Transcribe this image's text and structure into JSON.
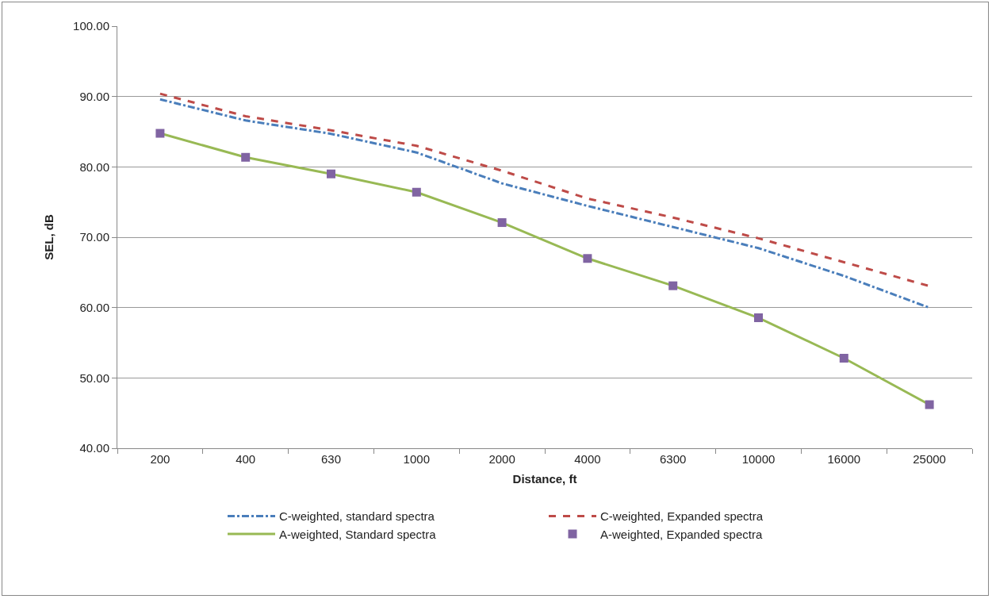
{
  "chart_data": {
    "type": "line",
    "xlabel": "Distance, ft",
    "ylabel": "SEL, dB",
    "categories": [
      "200",
      "400",
      "630",
      "1000",
      "2000",
      "4000",
      "6300",
      "10000",
      "16000",
      "25000"
    ],
    "ylim": [
      40,
      100
    ],
    "yticks": [
      {
        "value": 40,
        "label": "40.00"
      },
      {
        "value": 50,
        "label": "50.00"
      },
      {
        "value": 60,
        "label": "60.00"
      },
      {
        "value": 70,
        "label": "70.00"
      },
      {
        "value": 80,
        "label": "80.00"
      },
      {
        "value": 90,
        "label": "90.00"
      },
      {
        "value": 100,
        "label": "100.00"
      }
    ],
    "grid": "y",
    "legend": "bottom",
    "series": [
      {
        "name": "C-weighted, standard spectra",
        "color": "#4a7ebb",
        "line_style": "dashdot",
        "marker": "none",
        "values": [
          89.6,
          86.6,
          84.7,
          82.05,
          77.65,
          74.45,
          71.45,
          68.45,
          64.5,
          59.97
        ]
      },
      {
        "name": "C-weighted, Expanded spectra",
        "color": "#be4b48",
        "line_style": "dashed",
        "marker": "none",
        "values": [
          90.4,
          87.2,
          85.2,
          83.0,
          79.45,
          75.5,
          72.8,
          69.85,
          66.45,
          63.05
        ]
      },
      {
        "name": "A-weighted, Standard spectra",
        "color": "#98b954",
        "line_style": "solid",
        "marker": "none",
        "values": [
          84.77,
          81.36,
          79.0,
          76.4,
          72.08,
          66.98,
          63.1,
          58.55,
          52.8,
          46.2
        ]
      },
      {
        "name": "A-weighted, Expanded spectra",
        "type": "scatter",
        "color": "#8064a2",
        "marker": "square",
        "values": [
          84.77,
          81.36,
          79.0,
          76.4,
          72.08,
          66.98,
          63.1,
          58.55,
          52.8,
          46.2
        ]
      }
    ]
  }
}
